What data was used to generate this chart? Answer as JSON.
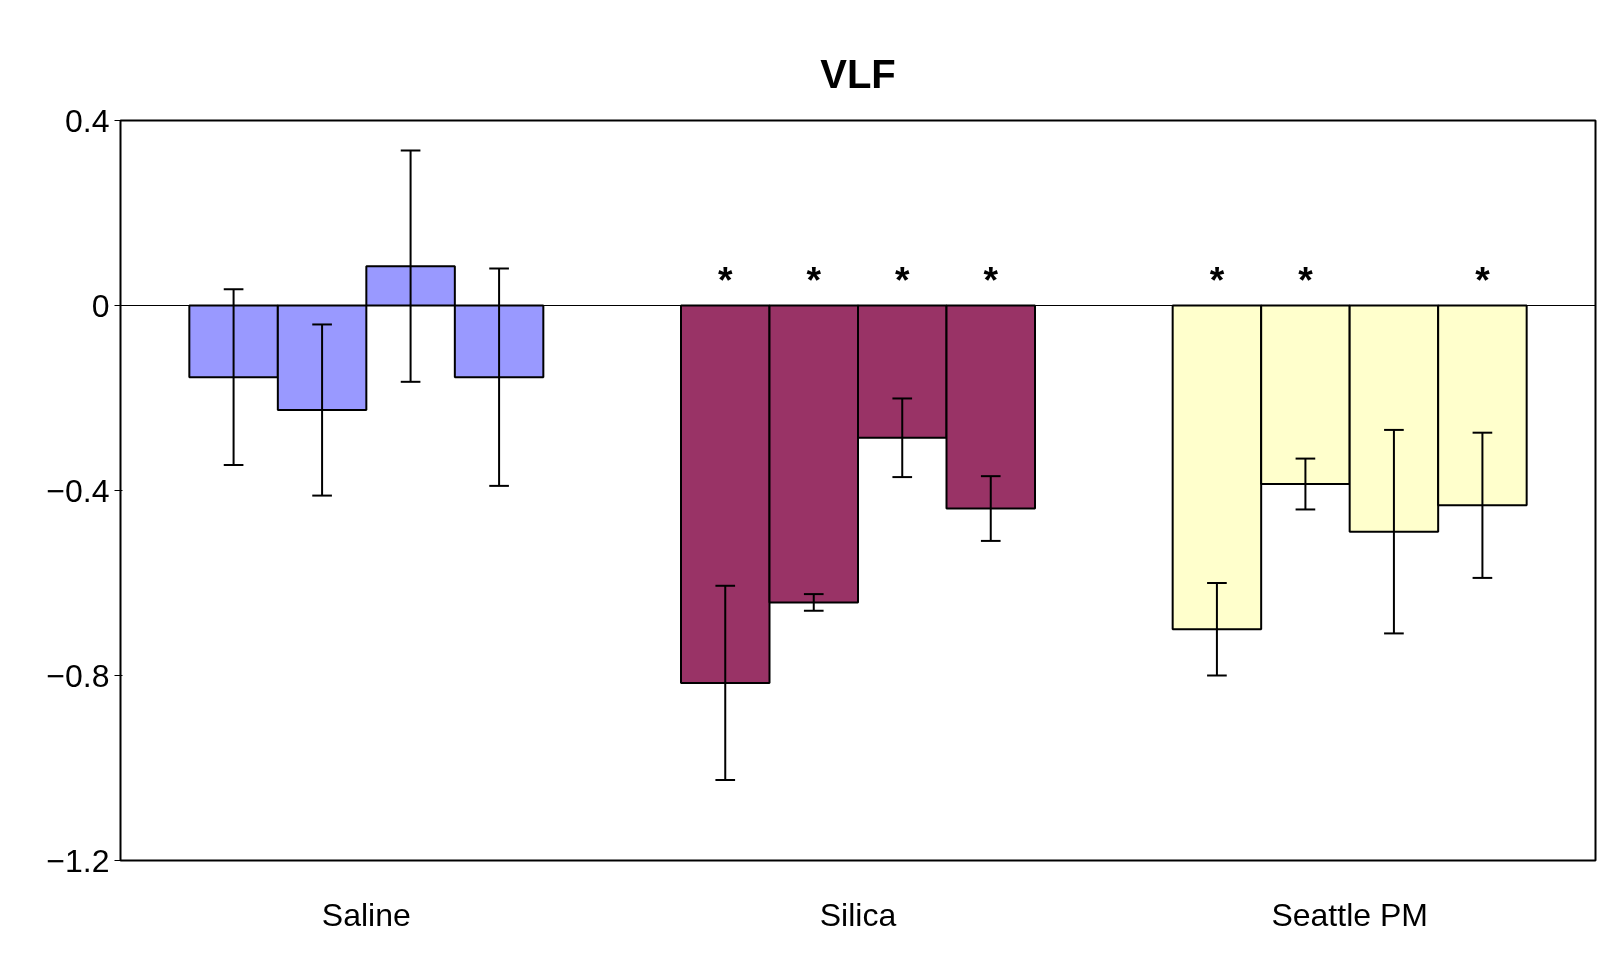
{
  "chart_data": {
    "type": "bar",
    "title": "VLF",
    "categories": [
      "Saline",
      "Silica",
      "Seattle PM"
    ],
    "ylim": [
      -1.2,
      0.4
    ],
    "yticks": [
      -1.2,
      -0.8,
      -0.4,
      0,
      0.4
    ],
    "series": [
      {
        "colors": [
          "#9999ff",
          "#993366",
          "#ffffcc"
        ],
        "values": [
          -0.155,
          -0.816,
          -0.7
        ],
        "errors": [
          0.19,
          0.21,
          0.1
        ],
        "value_labels": [
          null,
          "*",
          "*"
        ]
      },
      {
        "colors": [
          "#9999ff",
          "#993366",
          "#ffffcc"
        ],
        "values": [
          -0.226,
          -0.642,
          -0.386
        ],
        "errors": [
          0.185,
          0.018,
          0.055
        ],
        "value_labels": [
          null,
          "*",
          "*"
        ]
      },
      {
        "colors": [
          "#9999ff",
          "#993366",
          "#ffffcc"
        ],
        "values": [
          0.085,
          -0.286,
          -0.489
        ],
        "errors": [
          0.25,
          0.085,
          0.22
        ],
        "value_labels": [
          null,
          "*",
          null
        ]
      },
      {
        "colors": [
          "#9999ff",
          "#993366",
          "#ffffcc"
        ],
        "values": [
          -0.155,
          -0.439,
          -0.432
        ],
        "errors": [
          0.235,
          0.07,
          0.157
        ],
        "value_labels": [
          null,
          "*",
          "*"
        ]
      }
    ]
  }
}
